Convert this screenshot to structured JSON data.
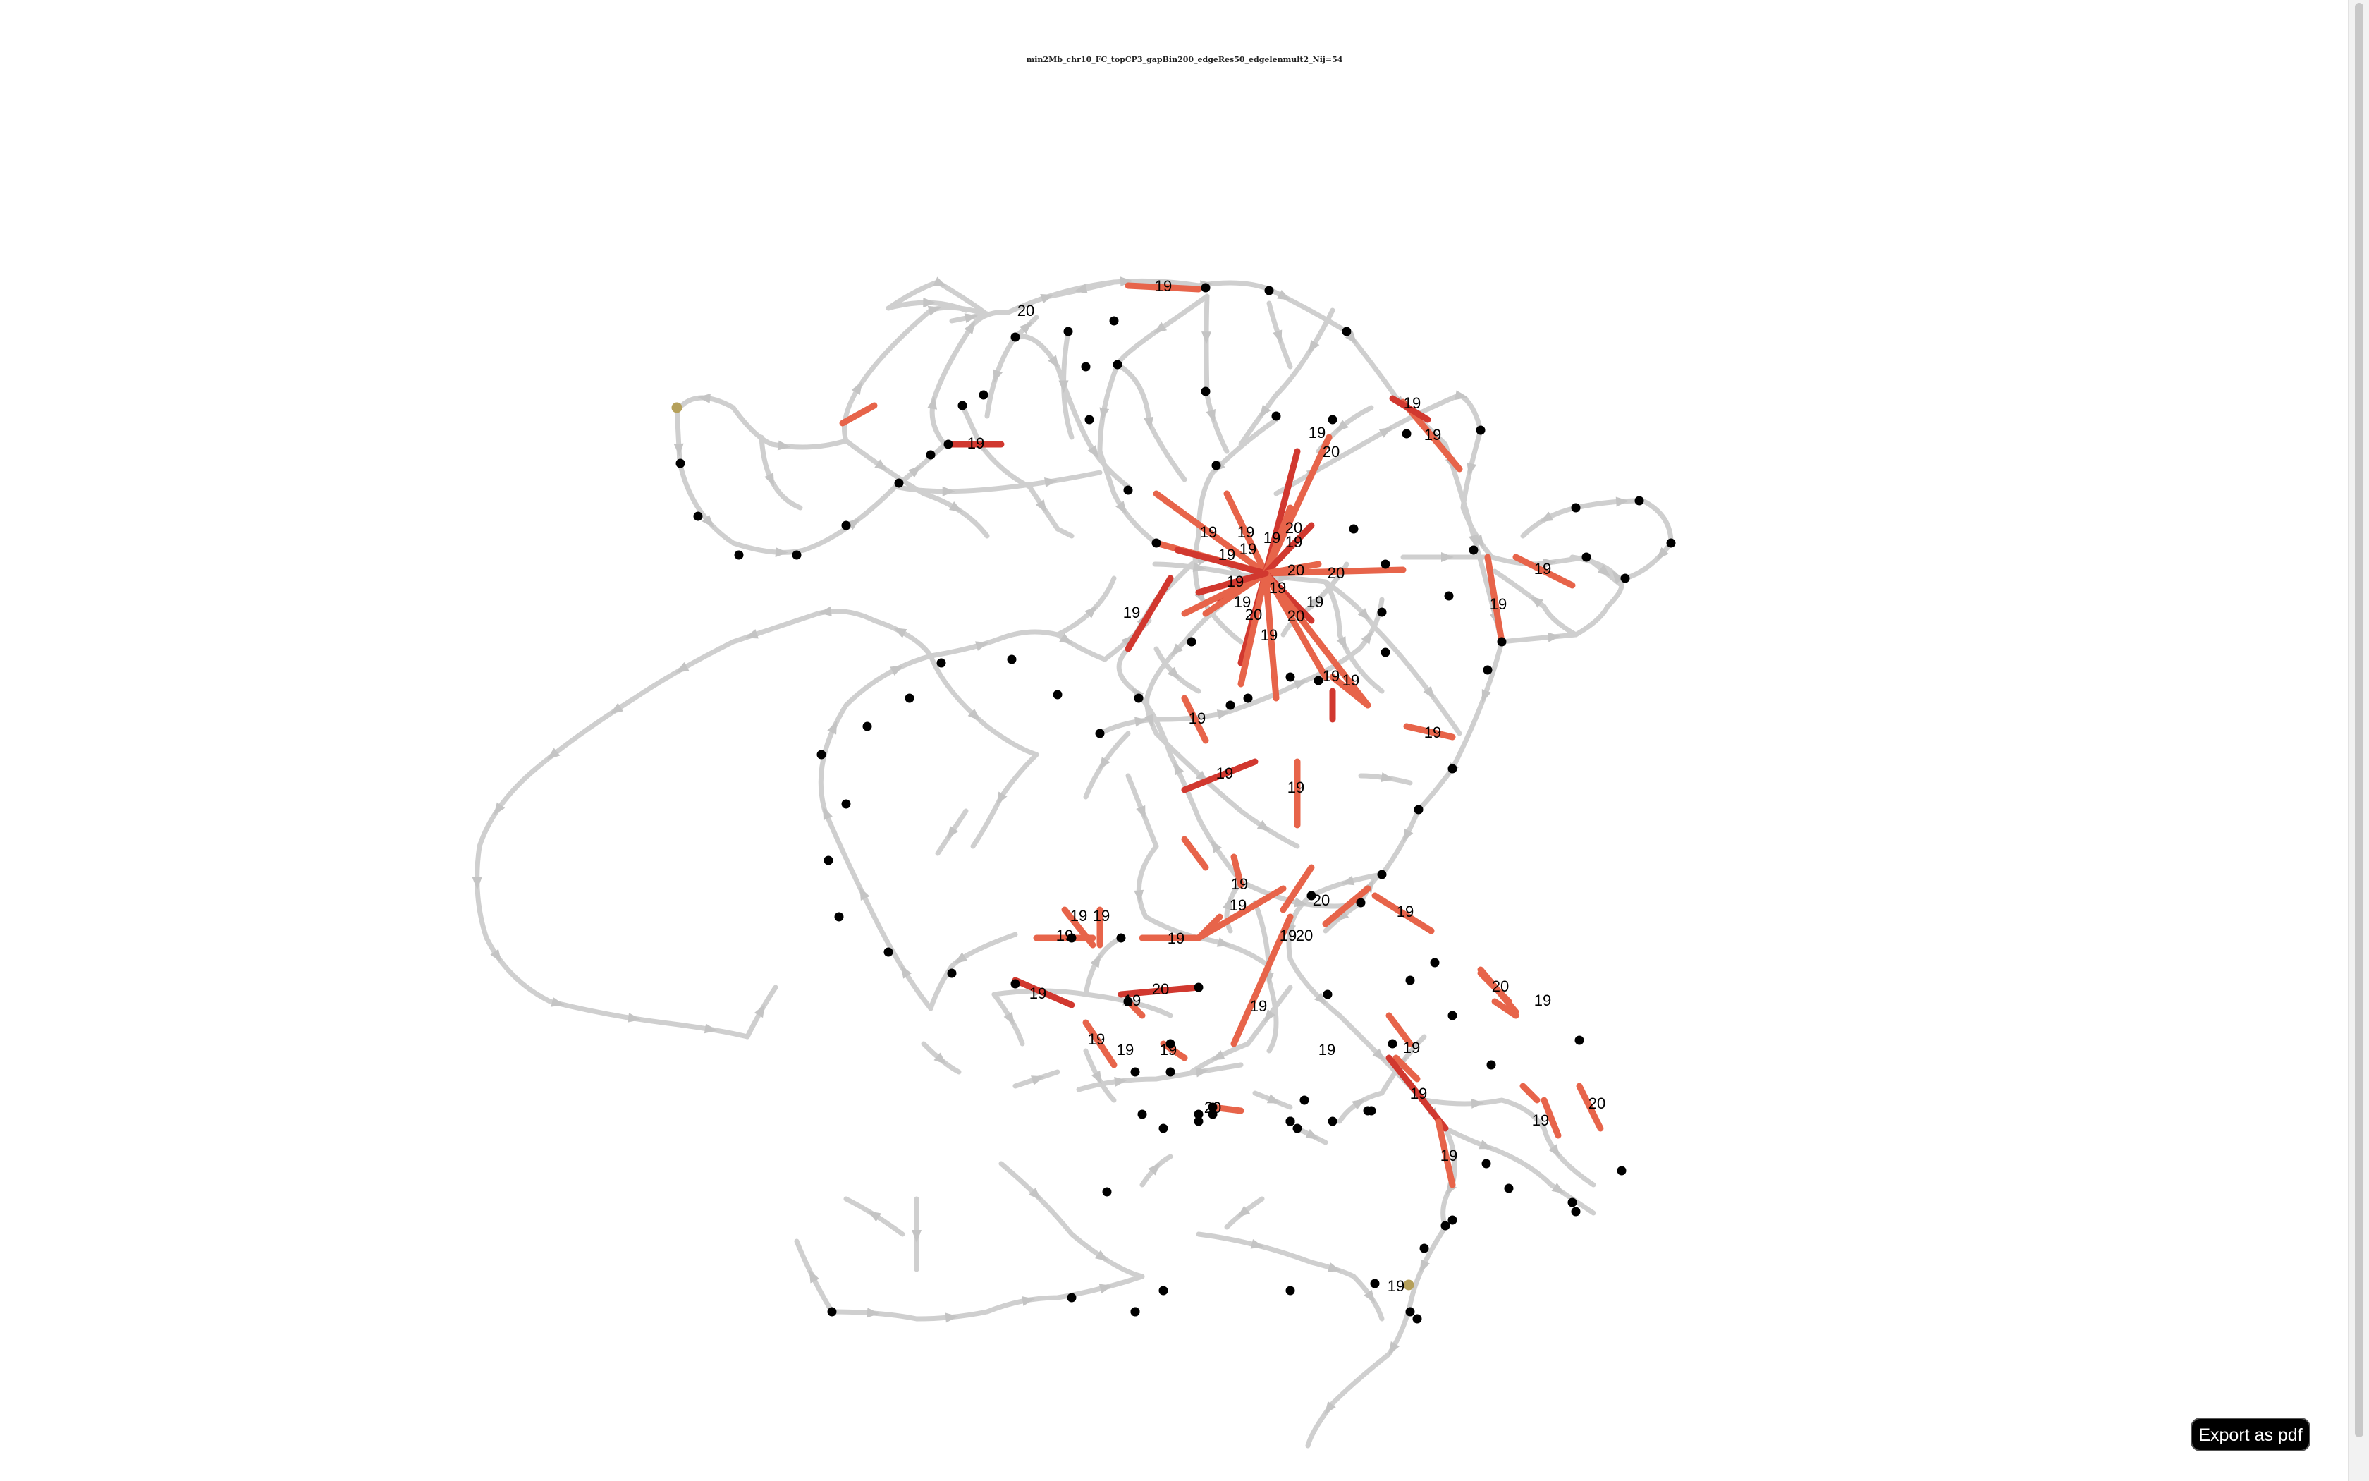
{
  "title": "min2Mb_chr10_FC_topCP3_gapBin200_edgeRes50_edgelenmult2_Nij=54",
  "export_button": "Export as pdf",
  "colors": {
    "gray_edge": "#cfcfcf",
    "red_edge_19": "#e7644a",
    "red_edge_20": "#d1382f",
    "node": "#000000",
    "endpoint": "#b5a05a"
  },
  "edge_labels": [
    "19",
    "20",
    "19",
    "19",
    "20",
    "19",
    "19",
    "19",
    "19",
    "19",
    "20",
    "19",
    "19",
    "19",
    "20",
    "20",
    "19",
    "19",
    "19",
    "19",
    "19",
    "19",
    "19",
    "20",
    "19",
    "20",
    "19",
    "19",
    "19",
    "19",
    "19",
    "19",
    "19",
    "20",
    "19",
    "19",
    "20",
    "19",
    "19",
    "19",
    "19",
    "19",
    "19",
    "20",
    "19",
    "19",
    "19",
    "19",
    "20",
    "19"
  ]
}
